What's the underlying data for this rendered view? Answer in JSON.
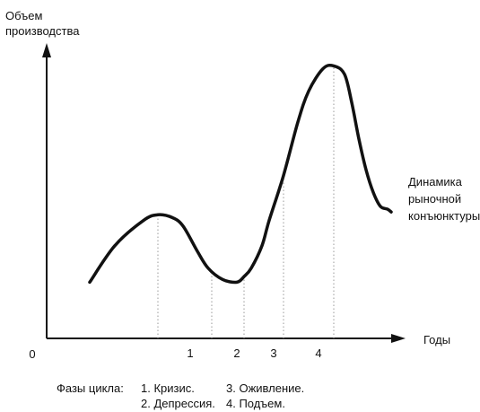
{
  "chart_data": {
    "type": "line",
    "ylabel": [
      "Объем",
      "производства"
    ],
    "xlabel": "Годы",
    "origin_label": "0",
    "curve_label": [
      "Динамика",
      "рыночной",
      "конъюнктуры"
    ],
    "x_range": [
      0,
      100
    ],
    "y_range": [
      0,
      100
    ],
    "series": [
      {
        "x": [
          12,
          19,
          27,
          31,
          35,
          38,
          42,
          45,
          49,
          53,
          55,
          57,
          60,
          62,
          66,
          70,
          73,
          77,
          80,
          83,
          85,
          87,
          89,
          91,
          93,
          95,
          96
        ],
        "y": [
          20,
          33,
          42,
          44,
          43,
          40,
          31,
          25,
          21,
          20,
          22,
          25,
          33,
          42,
          58,
          77,
          88,
          96,
          97,
          94,
          84,
          71,
          60,
          52,
          47,
          46,
          45
        ]
      }
    ],
    "phase_markers": [
      {
        "label": "1",
        "x": 31
      },
      {
        "label": "2",
        "x": 46
      },
      {
        "label": "3",
        "x": 55
      },
      {
        "label": "4",
        "x": 66
      },
      {
        "label": "",
        "x": 80
      }
    ]
  },
  "legend": {
    "title": "Фазы цикла:",
    "items": [
      "1. Кризис.",
      "2. Депрессия.",
      "3. Оживление.",
      "4. Подъем."
    ]
  }
}
